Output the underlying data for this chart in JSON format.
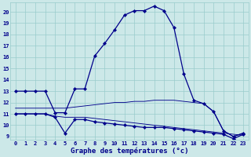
{
  "xlabel": "Graphe des températures (°c)",
  "background_color": "#cce8e8",
  "grid_color": "#99cccc",
  "line_color": "#00008b",
  "x_ticks": [
    0,
    1,
    2,
    3,
    4,
    5,
    6,
    7,
    8,
    9,
    10,
    11,
    12,
    13,
    14,
    15,
    16,
    17,
    18,
    19,
    20,
    21,
    22,
    23
  ],
  "y_ticks": [
    9,
    10,
    11,
    12,
    13,
    14,
    15,
    16,
    17,
    18,
    19,
    20
  ],
  "ylim": [
    8.7,
    20.8
  ],
  "xlim": [
    -0.5,
    23.5
  ],
  "line1_x": [
    0,
    1,
    2,
    3,
    4,
    5,
    6,
    7,
    8,
    9,
    10,
    11,
    12,
    13,
    14,
    15,
    16,
    17,
    18,
    19,
    20,
    21,
    22,
    23
  ],
  "line1_y": [
    13,
    13,
    13,
    13,
    11.1,
    11.1,
    13.2,
    13.2,
    16.1,
    17.2,
    18.4,
    19.7,
    20.1,
    20.1,
    20.5,
    20.1,
    18.6,
    14.5,
    12.2,
    11.9,
    11.2,
    9.5,
    9.0,
    9.3
  ],
  "line2_x": [
    0,
    1,
    2,
    3,
    4,
    5,
    6,
    7,
    8,
    9,
    10,
    11,
    12,
    13,
    14,
    15,
    16,
    17,
    18,
    19,
    20,
    21,
    22,
    23
  ],
  "line2_y": [
    11.5,
    11.5,
    11.5,
    11.5,
    11.5,
    11.5,
    11.6,
    11.7,
    11.8,
    11.9,
    12.0,
    12.0,
    12.1,
    12.1,
    12.2,
    12.2,
    12.2,
    12.1,
    12.0,
    11.9,
    11.2,
    9.5,
    9.0,
    9.3
  ],
  "line3_x": [
    0,
    1,
    2,
    3,
    4,
    5,
    6,
    7,
    8,
    9,
    10,
    11,
    12,
    13,
    14,
    15,
    16,
    17,
    18,
    19,
    20,
    21,
    22,
    23
  ],
  "line3_y": [
    11.0,
    11.0,
    11.0,
    11.0,
    10.7,
    9.3,
    10.5,
    10.5,
    10.3,
    10.2,
    10.1,
    10.0,
    9.9,
    9.8,
    9.8,
    9.8,
    9.7,
    9.6,
    9.5,
    9.4,
    9.3,
    9.2,
    8.8,
    9.2
  ],
  "line4_x": [
    0,
    1,
    2,
    3,
    4,
    5,
    6,
    7,
    8,
    9,
    10,
    11,
    12,
    13,
    14,
    15,
    16,
    17,
    18,
    19,
    20,
    21,
    22,
    23
  ],
  "line4_y": [
    11.0,
    11.0,
    11.0,
    11.0,
    10.8,
    10.7,
    10.7,
    10.7,
    10.6,
    10.5,
    10.4,
    10.3,
    10.2,
    10.1,
    10.0,
    9.9,
    9.8,
    9.7,
    9.6,
    9.5,
    9.4,
    9.3,
    9.2,
    9.1
  ],
  "tick_fontsize": 5.0,
  "xlabel_fontsize": 6.5,
  "linewidth": 0.9,
  "markersize": 2.2
}
